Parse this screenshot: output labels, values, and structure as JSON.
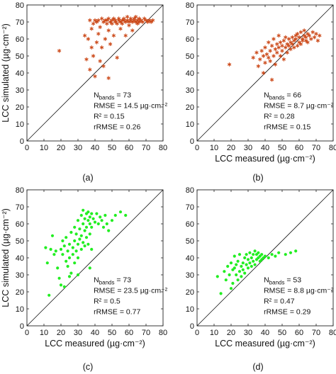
{
  "chart_data": [
    {
      "type": "scatter",
      "panel_label": "(a)",
      "xlabel": "",
      "ylabel": "LCC simulated (µg·cm⁻²)",
      "xlim": [
        0,
        80
      ],
      "ylim": [
        0,
        80
      ],
      "xticks": [
        "0",
        "10",
        "20",
        "30",
        "40",
        "50",
        "60",
        "70",
        "80"
      ],
      "yticks": [
        "0",
        "10",
        "20",
        "30",
        "40",
        "50",
        "60",
        "70",
        "80"
      ],
      "marker": "asterisk",
      "marker_color": "#cc4a1a",
      "reference_line": "1:1",
      "stats": [
        "N",
        "bands",
        " = 73",
        "RMSE = 14.5 µg·cm⁻²",
        "R² = 0.15",
        "rRMSE = 0.26"
      ],
      "points": [
        [
          19,
          53
        ],
        [
          34,
          62
        ],
        [
          35,
          48
        ],
        [
          36,
          60
        ],
        [
          37,
          42
        ],
        [
          37,
          71
        ],
        [
          38,
          55
        ],
        [
          38,
          66
        ],
        [
          39,
          50
        ],
        [
          39,
          69
        ],
        [
          40,
          71
        ],
        [
          40,
          38
        ],
        [
          41,
          58
        ],
        [
          41,
          70
        ],
        [
          42,
          63
        ],
        [
          42,
          71
        ],
        [
          43,
          47
        ],
        [
          43,
          67
        ],
        [
          44,
          72
        ],
        [
          44,
          55
        ],
        [
          45,
          70
        ],
        [
          45,
          44
        ],
        [
          46,
          71
        ],
        [
          46,
          60
        ],
        [
          47,
          69
        ],
        [
          47,
          71
        ],
        [
          48,
          72
        ],
        [
          48,
          65
        ],
        [
          48,
          37
        ],
        [
          49,
          70
        ],
        [
          49,
          57
        ],
        [
          50,
          71
        ],
        [
          50,
          69
        ],
        [
          51,
          72
        ],
        [
          51,
          62
        ],
        [
          52,
          70
        ],
        [
          52,
          71
        ],
        [
          53,
          69
        ],
        [
          53,
          49
        ],
        [
          54,
          71
        ],
        [
          54,
          72
        ],
        [
          55,
          70
        ],
        [
          55,
          66
        ],
        [
          56,
          71
        ],
        [
          56,
          69
        ],
        [
          57,
          72
        ],
        [
          57,
          71
        ],
        [
          58,
          70
        ],
        [
          58,
          62
        ],
        [
          59,
          71
        ],
        [
          59,
          73
        ],
        [
          60,
          70
        ],
        [
          60,
          68
        ],
        [
          61,
          72
        ],
        [
          61,
          71
        ],
        [
          62,
          70
        ],
        [
          62,
          65
        ],
        [
          63,
          71
        ],
        [
          63,
          72
        ],
        [
          64,
          70
        ],
        [
          64,
          73
        ],
        [
          65,
          71
        ],
        [
          65,
          69
        ],
        [
          66,
          72
        ],
        [
          66,
          70
        ],
        [
          67,
          71
        ],
        [
          68,
          70
        ],
        [
          69,
          72
        ],
        [
          70,
          71
        ],
        [
          71,
          70
        ],
        [
          72,
          71
        ],
        [
          73,
          70
        ],
        [
          74,
          71
        ]
      ]
    },
    {
      "type": "scatter",
      "panel_label": "(b)",
      "xlabel": "LCC measured (µg·cm⁻²)",
      "ylabel": "",
      "xlim": [
        0,
        80
      ],
      "ylim": [
        0,
        80
      ],
      "xticks": [
        "0",
        "10",
        "20",
        "30",
        "40",
        "50",
        "60",
        "70",
        "80"
      ],
      "yticks": [
        "0",
        "10",
        "20",
        "30",
        "40",
        "50",
        "60",
        "70",
        "80"
      ],
      "marker": "asterisk",
      "marker_color": "#cc4a1a",
      "reference_line": "1:1",
      "stats": [
        "N",
        "bands",
        " = 66",
        "RMSE = 8.7 µg·cm⁻²",
        "R² = 0.28",
        "rRMSE = 0.15"
      ],
      "points": [
        [
          19,
          45
        ],
        [
          33,
          49
        ],
        [
          35,
          52
        ],
        [
          36,
          44
        ],
        [
          37,
          48
        ],
        [
          38,
          53
        ],
        [
          39,
          40
        ],
        [
          39,
          50
        ],
        [
          40,
          46
        ],
        [
          40,
          55
        ],
        [
          41,
          51
        ],
        [
          42,
          49
        ],
        [
          42,
          58
        ],
        [
          43,
          47
        ],
        [
          43,
          53
        ],
        [
          44,
          36
        ],
        [
          44,
          56
        ],
        [
          45,
          50
        ],
        [
          45,
          60
        ],
        [
          46,
          54
        ],
        [
          46,
          45
        ],
        [
          47,
          57
        ],
        [
          47,
          52
        ],
        [
          48,
          55
        ],
        [
          48,
          62
        ],
        [
          49,
          50
        ],
        [
          49,
          58
        ],
        [
          50,
          53
        ],
        [
          50,
          56
        ],
        [
          51,
          59
        ],
        [
          51,
          48
        ],
        [
          52,
          55
        ],
        [
          52,
          61
        ],
        [
          53,
          57
        ],
        [
          53,
          52
        ],
        [
          54,
          60
        ],
        [
          54,
          56
        ],
        [
          55,
          58
        ],
        [
          55,
          54
        ],
        [
          56,
          61
        ],
        [
          56,
          57
        ],
        [
          57,
          59
        ],
        [
          57,
          55
        ],
        [
          58,
          62
        ],
        [
          58,
          60
        ],
        [
          59,
          56
        ],
        [
          59,
          63
        ],
        [
          60,
          58
        ],
        [
          60,
          61
        ],
        [
          61,
          57
        ],
        [
          61,
          64
        ],
        [
          62,
          60
        ],
        [
          62,
          59
        ],
        [
          63,
          62
        ],
        [
          63,
          65
        ],
        [
          64,
          59
        ],
        [
          64,
          61
        ],
        [
          65,
          63
        ],
        [
          65,
          58
        ],
        [
          66,
          62
        ],
        [
          67,
          60
        ],
        [
          68,
          64
        ],
        [
          69,
          61
        ],
        [
          70,
          63
        ],
        [
          71,
          59
        ],
        [
          72,
          62
        ]
      ]
    },
    {
      "type": "scatter",
      "panel_label": "(c)",
      "xlabel": "LCC measured (µg·cm⁻²)",
      "ylabel": "LCC simulated (µg·cm⁻²)",
      "xlim": [
        0,
        80
      ],
      "ylim": [
        0,
        80
      ],
      "xticks": [
        "0",
        "10",
        "20",
        "30",
        "40",
        "50",
        "60",
        "70",
        "80"
      ],
      "yticks": [
        "0",
        "10",
        "20",
        "30",
        "40",
        "50",
        "60",
        "70",
        "80"
      ],
      "marker": "dot",
      "marker_color": "#22ee22",
      "reference_line": "1:1",
      "stats": [
        "N",
        "bands",
        " = 73",
        "RMSE = 23.5 µg·cm⁻²",
        "R² = 0.5",
        "rRMSE = 0.77"
      ],
      "points": [
        [
          11,
          46
        ],
        [
          12,
          37
        ],
        [
          13,
          18
        ],
        [
          14,
          45
        ],
        [
          15,
          53
        ],
        [
          16,
          42
        ],
        [
          17,
          44
        ],
        [
          18,
          34
        ],
        [
          19,
          28
        ],
        [
          20,
          24
        ],
        [
          20,
          45
        ],
        [
          21,
          42
        ],
        [
          21,
          50
        ],
        [
          22,
          23
        ],
        [
          22,
          47
        ],
        [
          23,
          38
        ],
        [
          23,
          52
        ],
        [
          24,
          44
        ],
        [
          24,
          35
        ],
        [
          25,
          48
        ],
        [
          25,
          40
        ],
        [
          26,
          55
        ],
        [
          26,
          31
        ],
        [
          27,
          46
        ],
        [
          27,
          42
        ],
        [
          28,
          58
        ],
        [
          28,
          50
        ],
        [
          28,
          37
        ],
        [
          29,
          54
        ],
        [
          29,
          44
        ],
        [
          30,
          62
        ],
        [
          30,
          48
        ],
        [
          30,
          40
        ],
        [
          31,
          57
        ],
        [
          31,
          51
        ],
        [
          32,
          65
        ],
        [
          32,
          53
        ],
        [
          32,
          45
        ],
        [
          33,
          60
        ],
        [
          33,
          68
        ],
        [
          33,
          49
        ],
        [
          34,
          56
        ],
        [
          34,
          63
        ],
        [
          34,
          47
        ],
        [
          35,
          66
        ],
        [
          35,
          58
        ],
        [
          35,
          52
        ],
        [
          36,
          62
        ],
        [
          36,
          67
        ],
        [
          36,
          48
        ],
        [
          37,
          60
        ],
        [
          37,
          54
        ],
        [
          37,
          64
        ],
        [
          38,
          66
        ],
        [
          38,
          58
        ],
        [
          39,
          63
        ],
        [
          40,
          61
        ],
        [
          41,
          66
        ],
        [
          42,
          60
        ],
        [
          43,
          64
        ],
        [
          44,
          62
        ],
        [
          45,
          58
        ],
        [
          46,
          65
        ],
        [
          47,
          60
        ],
        [
          48,
          56
        ],
        [
          50,
          62
        ],
        [
          52,
          65
        ],
        [
          55,
          67
        ],
        [
          58,
          65
        ],
        [
          37,
          34
        ],
        [
          30,
          30
        ],
        [
          25,
          29
        ],
        [
          38,
          45
        ]
      ]
    },
    {
      "type": "scatter",
      "panel_label": "(d)",
      "xlabel": "LCC measured (µg·cm⁻²)",
      "ylabel": "",
      "xlim": [
        0,
        80
      ],
      "ylim": [
        0,
        80
      ],
      "xticks": [
        "0",
        "10",
        "20",
        "30",
        "40",
        "50",
        "60",
        "70",
        "80"
      ],
      "yticks": [
        "0",
        "10",
        "20",
        "30",
        "40",
        "50",
        "60",
        "70",
        "80"
      ],
      "marker": "dot",
      "marker_color": "#22ee22",
      "reference_line": "1:1",
      "stats": [
        "N",
        "bands",
        " = 53",
        "RMSE = 8.8 µg·cm⁻²",
        "R² = 0.47",
        "rRMSE = 0.29"
      ],
      "points": [
        [
          12,
          29
        ],
        [
          14,
          19
        ],
        [
          16,
          32
        ],
        [
          17,
          27
        ],
        [
          18,
          35
        ],
        [
          19,
          30
        ],
        [
          20,
          22
        ],
        [
          20,
          37
        ],
        [
          21,
          25
        ],
        [
          21,
          33
        ],
        [
          22,
          34
        ],
        [
          22,
          41
        ],
        [
          23,
          30
        ],
        [
          23,
          36
        ],
        [
          24,
          27
        ],
        [
          24,
          38
        ],
        [
          25,
          32
        ],
        [
          25,
          42
        ],
        [
          26,
          35
        ],
        [
          26,
          29
        ],
        [
          27,
          37
        ],
        [
          27,
          33
        ],
        [
          28,
          40
        ],
        [
          28,
          31
        ],
        [
          29,
          36
        ],
        [
          29,
          42
        ],
        [
          30,
          34
        ],
        [
          30,
          39
        ],
        [
          31,
          37
        ],
        [
          31,
          43
        ],
        [
          32,
          35
        ],
        [
          32,
          40
        ],
        [
          33,
          38
        ],
        [
          33,
          42
        ],
        [
          34,
          36
        ],
        [
          34,
          44
        ],
        [
          35,
          39
        ],
        [
          35,
          42
        ],
        [
          36,
          40
        ],
        [
          36,
          43
        ],
        [
          37,
          38
        ],
        [
          37,
          41
        ],
        [
          38,
          42
        ],
        [
          38,
          39
        ],
        [
          39,
          40
        ],
        [
          40,
          41
        ],
        [
          42,
          40
        ],
        [
          44,
          42
        ],
        [
          46,
          41
        ],
        [
          48,
          43
        ],
        [
          52,
          42
        ],
        [
          55,
          43
        ],
        [
          58,
          44
        ]
      ]
    }
  ]
}
